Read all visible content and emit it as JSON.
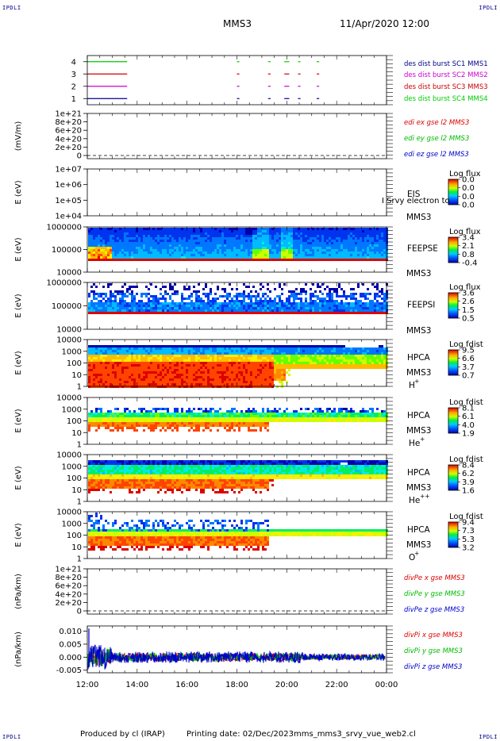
{
  "header": {
    "corner_tl": "IPDLI",
    "corner_tr": "IPDLI",
    "corner_bl": "IPDLI",
    "corner_br": "IPDLI",
    "spacecraft": "MMS3",
    "datetime": "11/Apr/2020 12:00"
  },
  "footer": {
    "produced_by": "Produced by cl (IRAP)",
    "printing_date": "Printing date: 02/Dec/2023",
    "script_name": "mms_mms3_srvy_vue_web2.cl"
  },
  "colors": {
    "mms1": "#00008b",
    "mms2": "#cc00cc",
    "mms3": "#cc0000",
    "mms4": "#00cc00",
    "x": "#dd0000",
    "y": "#00bb00",
    "z": "#0000cc"
  },
  "chart_data": [
    {
      "type": "line",
      "id": "burst",
      "yticks": [
        "4",
        "3",
        "2",
        "1"
      ],
      "ylim": [
        0.5,
        4.5
      ],
      "x_hours": [
        12,
        24
      ],
      "series": [
        {
          "name": "des dist burst SC1 MMS1",
          "color": "#00008b",
          "level": 1,
          "segments": [
            [
              12.0,
              13.6
            ],
            [
              18.0,
              18.1
            ],
            [
              19.25,
              19.35
            ],
            [
              19.9,
              20.1
            ],
            [
              20.45,
              20.55
            ],
            [
              21.2,
              21.3
            ]
          ]
        },
        {
          "name": "des dist burst SC2 MMS2",
          "color": "#cc00cc",
          "level": 2,
          "segments": [
            [
              12.0,
              13.6
            ],
            [
              18.0,
              18.1
            ],
            [
              19.25,
              19.35
            ],
            [
              19.9,
              20.1
            ],
            [
              20.45,
              20.55
            ],
            [
              21.2,
              21.3
            ]
          ]
        },
        {
          "name": "des dist burst SC3 MMS3",
          "color": "#cc0000",
          "level": 3,
          "segments": [
            [
              12.0,
              13.6
            ],
            [
              18.0,
              18.1
            ],
            [
              19.25,
              19.35
            ],
            [
              19.9,
              20.1
            ],
            [
              20.45,
              20.55
            ],
            [
              21.2,
              21.3
            ]
          ]
        },
        {
          "name": "des dist burst SC4 MMS4",
          "color": "#00cc00",
          "level": 4,
          "segments": [
            [
              12.0,
              13.6
            ],
            [
              18.0,
              18.1
            ],
            [
              19.25,
              19.35
            ],
            [
              19.9,
              20.1
            ],
            [
              20.45,
              20.55
            ],
            [
              21.2,
              21.3
            ]
          ]
        }
      ]
    },
    {
      "type": "line",
      "id": "edi",
      "ylabel": "(mV/m)",
      "yticks": [
        "1e+21",
        "8e+20",
        "6e+20",
        "4e+20",
        "2e+20",
        "0"
      ],
      "zero_dashed": true,
      "series": [
        {
          "name": "edi ex gse l2 MMS3",
          "color": "#dd0000"
        },
        {
          "name": "edi ey gse l2 MMS3",
          "color": "#00bb00"
        },
        {
          "name": "edi ez gse l2 MMS3",
          "color": "#0000cc"
        }
      ]
    },
    {
      "type": "heatmap",
      "id": "eis",
      "ylabel": "E (eV)",
      "yticks": [
        "1e+07",
        "1e+06",
        "1e+05",
        "1e+04"
      ],
      "instrument": "EIS",
      "spacecraft": "MMS3",
      "note": "I Srvy electron to",
      "colorbar_title": "Log flux",
      "colorbar_ticks": [
        "0.0",
        "0.0",
        "0.0",
        "0.0"
      ]
    },
    {
      "type": "heatmap",
      "id": "feepse",
      "ylabel": "E (eV)",
      "yticks": [
        "1000000",
        "100000",
        "10000"
      ],
      "instrument": "FEEPSE",
      "spacecraft": "MMS3",
      "colorbar_title": "Log flux",
      "colorbar_ticks": [
        "3.4",
        "2.1",
        "0.8",
        "-0.4"
      ]
    },
    {
      "type": "heatmap",
      "id": "feepsi",
      "ylabel": "E (eV)",
      "yticks": [
        "1000000",
        "100000",
        "10000"
      ],
      "instrument": "FEEPSI",
      "spacecraft": "MMS3",
      "colorbar_title": "Log flux",
      "colorbar_ticks": [
        "3.6",
        "2.6",
        "1.5",
        "0.5"
      ]
    },
    {
      "type": "heatmap",
      "id": "hpca_h",
      "ylabel": "E (eV)",
      "yticks": [
        "10000",
        "1000",
        "100",
        "10",
        "1"
      ],
      "instrument": "HPCA",
      "spacecraft": "MMS3",
      "species": "H",
      "charge": "+",
      "colorbar_title": "Log fdist",
      "colorbar_ticks": [
        "9.5",
        "6.6",
        "3.7",
        "0.7"
      ]
    },
    {
      "type": "heatmap",
      "id": "hpca_he1",
      "ylabel": "E (eV)",
      "yticks": [
        "10000",
        "1000",
        "100",
        "10",
        "1"
      ],
      "instrument": "HPCA",
      "spacecraft": "MMS3",
      "species": "He",
      "charge": "+",
      "colorbar_title": "Log fdist",
      "colorbar_ticks": [
        "8.1",
        "6.1",
        "4.0",
        "1.9"
      ]
    },
    {
      "type": "heatmap",
      "id": "hpca_he2",
      "ylabel": "E (eV)",
      "yticks": [
        "10000",
        "1000",
        "100",
        "10",
        "1"
      ],
      "instrument": "HPCA",
      "spacecraft": "MMS3",
      "species": "He",
      "charge": "++",
      "colorbar_title": "Log fdist",
      "colorbar_ticks": [
        "8.4",
        "6.2",
        "3.9",
        "1.6"
      ]
    },
    {
      "type": "heatmap",
      "id": "hpca_o",
      "ylabel": "E (eV)",
      "yticks": [
        "10000",
        "1000",
        "100",
        "10",
        "1"
      ],
      "instrument": "HPCA",
      "spacecraft": "MMS3",
      "species": "O",
      "charge": "+",
      "colorbar_title": "Log fdist",
      "colorbar_ticks": [
        "9.4",
        "7.3",
        "5.3",
        "3.2"
      ]
    },
    {
      "type": "line",
      "id": "divpe",
      "ylabel": "(nPa/km)",
      "yticks": [
        "1e+21",
        "8e+20",
        "6e+20",
        "4e+20",
        "2e+20",
        "0"
      ],
      "zero_dashed": true,
      "series": [
        {
          "name": "divPe x gse MMS3",
          "color": "#dd0000"
        },
        {
          "name": "divPe y gse MMS3",
          "color": "#00bb00"
        },
        {
          "name": "divPe z gse MMS3",
          "color": "#0000cc"
        }
      ]
    },
    {
      "type": "line",
      "id": "divpi",
      "ylabel": "(nPa/km)",
      "yticks": [
        "0.010",
        "0.005",
        "0.000",
        "-0.005"
      ],
      "ylim": [
        -0.006,
        0.012
      ],
      "series": [
        {
          "name": "divPi x gse MMS3",
          "color": "#dd0000"
        },
        {
          "name": "divPi y gse MMS3",
          "color": "#00bb00"
        },
        {
          "name": "divPi z gse MMS3",
          "color": "#0000cc"
        }
      ]
    }
  ],
  "xaxis": {
    "ticks": [
      "12:00",
      "14:00",
      "16:00",
      "18:00",
      "20:00",
      "22:00",
      "00:00"
    ]
  }
}
